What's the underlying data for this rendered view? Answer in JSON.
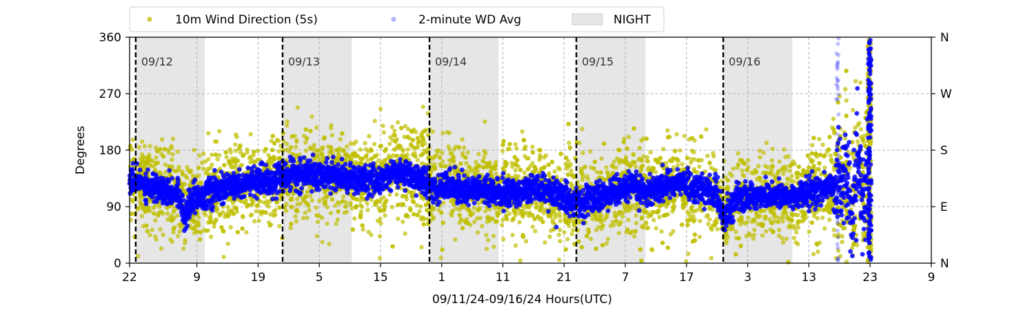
{
  "chart_data": {
    "type": "scatter",
    "xlabel": "09/11/24-09/16/24  Hours(UTC)",
    "ylabel": "Degrees",
    "ylim": [
      0,
      360
    ],
    "xlim_hours": [
      0,
      131
    ],
    "x_ticks": [
      {
        "hour": 0,
        "label": "22"
      },
      {
        "hour": 11,
        "label": "9"
      },
      {
        "hour": 21,
        "label": "19"
      },
      {
        "hour": 31,
        "label": "5"
      },
      {
        "hour": 41,
        "label": "15"
      },
      {
        "hour": 51,
        "label": "1"
      },
      {
        "hour": 61,
        "label": "11"
      },
      {
        "hour": 71,
        "label": "21"
      },
      {
        "hour": 81,
        "label": "7"
      },
      {
        "hour": 91,
        "label": "17"
      },
      {
        "hour": 101,
        "label": "3"
      },
      {
        "hour": 111,
        "label": "13"
      },
      {
        "hour": 121,
        "label": "23"
      },
      {
        "hour": 131,
        "label": "9"
      }
    ],
    "y_ticks": [
      0,
      90,
      180,
      270,
      360
    ],
    "y_right_ticks": [
      {
        "value": 0,
        "label": "N"
      },
      {
        "value": 90,
        "label": "E"
      },
      {
        "value": 180,
        "label": "S"
      },
      {
        "value": 270,
        "label": "W"
      },
      {
        "value": 360,
        "label": "N"
      }
    ],
    "grid": true,
    "legend": {
      "position": "top",
      "items": [
        {
          "label": "10m Wind Direction (5s)",
          "color": "#bfbf00"
        },
        {
          "label": "2-minute WD Avg",
          "color": "#0000ff"
        },
        {
          "label": "NIGHT",
          "color": "#e6e6e6"
        }
      ]
    },
    "day_boundaries": [
      {
        "hour": 1,
        "label": "09/12"
      },
      {
        "hour": 25,
        "label": "09/13"
      },
      {
        "hour": 49,
        "label": "09/14"
      },
      {
        "hour": 73,
        "label": "09/15"
      },
      {
        "hour": 97,
        "label": "09/16"
      }
    ],
    "night_periods": [
      [
        1,
        12.3
      ],
      [
        25,
        36.3
      ],
      [
        49,
        60.3
      ],
      [
        73,
        84.3
      ],
      [
        97,
        108.3
      ]
    ],
    "series": [
      {
        "name": "10m Wind Direction (5s)",
        "color": "#bfbf00",
        "spread": 45,
        "points": [
          [
            0,
            130
          ],
          [
            2,
            128
          ],
          [
            4,
            120
          ],
          [
            6,
            118
          ],
          [
            8,
            110
          ],
          [
            9,
            90
          ],
          [
            10,
            100
          ],
          [
            12,
            108
          ],
          [
            14,
            115
          ],
          [
            16,
            120
          ],
          [
            18,
            125
          ],
          [
            20,
            128
          ],
          [
            22,
            130
          ],
          [
            24,
            135
          ],
          [
            26,
            138
          ],
          [
            28,
            140
          ],
          [
            30,
            142
          ],
          [
            32,
            140
          ],
          [
            34,
            138
          ],
          [
            36,
            135
          ],
          [
            38,
            130
          ],
          [
            40,
            132
          ],
          [
            42,
            138
          ],
          [
            44,
            145
          ],
          [
            46,
            140
          ],
          [
            48,
            130
          ],
          [
            50,
            120
          ],
          [
            52,
            125
          ],
          [
            54,
            120
          ],
          [
            56,
            115
          ],
          [
            58,
            118
          ],
          [
            60,
            110
          ],
          [
            62,
            112
          ],
          [
            64,
            115
          ],
          [
            66,
            120
          ],
          [
            68,
            112
          ],
          [
            70,
            110
          ],
          [
            72,
            100
          ],
          [
            74,
            95
          ],
          [
            76,
            105
          ],
          [
            78,
            110
          ],
          [
            80,
            118
          ],
          [
            82,
            120
          ],
          [
            84,
            115
          ],
          [
            86,
            118
          ],
          [
            88,
            125
          ],
          [
            90,
            130
          ],
          [
            92,
            120
          ],
          [
            94,
            115
          ],
          [
            96,
            110
          ],
          [
            97,
            75
          ],
          [
            99,
            100
          ],
          [
            101,
            105
          ],
          [
            103,
            108
          ],
          [
            105,
            110
          ],
          [
            107,
            105
          ],
          [
            109,
            108
          ],
          [
            111,
            112
          ],
          [
            113,
            118
          ],
          [
            115,
            125
          ],
          [
            117,
            140
          ],
          [
            118,
            70
          ],
          [
            119,
            150
          ],
          [
            120,
            100
          ],
          [
            121,
            150
          ]
        ]
      },
      {
        "name": "2-minute WD Avg",
        "color": "#0000ff",
        "points": [
          [
            0,
            130
          ],
          [
            2,
            128
          ],
          [
            4,
            120
          ],
          [
            6,
            118
          ],
          [
            8,
            110
          ],
          [
            9,
            75
          ],
          [
            10,
            100
          ],
          [
            12,
            108
          ],
          [
            14,
            115
          ],
          [
            16,
            120
          ],
          [
            18,
            125
          ],
          [
            20,
            128
          ],
          [
            22,
            130
          ],
          [
            24,
            135
          ],
          [
            26,
            138
          ],
          [
            28,
            140
          ],
          [
            30,
            142
          ],
          [
            32,
            140
          ],
          [
            34,
            138
          ],
          [
            36,
            135
          ],
          [
            38,
            130
          ],
          [
            40,
            132
          ],
          [
            42,
            138
          ],
          [
            44,
            145
          ],
          [
            46,
            140
          ],
          [
            48,
            130
          ],
          [
            50,
            120
          ],
          [
            52,
            125
          ],
          [
            54,
            120
          ],
          [
            56,
            115
          ],
          [
            58,
            118
          ],
          [
            60,
            110
          ],
          [
            62,
            112
          ],
          [
            64,
            115
          ],
          [
            66,
            120
          ],
          [
            68,
            112
          ],
          [
            70,
            110
          ],
          [
            72,
            100
          ],
          [
            74,
            95
          ],
          [
            76,
            105
          ],
          [
            78,
            110
          ],
          [
            80,
            118
          ],
          [
            82,
            120
          ],
          [
            84,
            115
          ],
          [
            86,
            118
          ],
          [
            88,
            125
          ],
          [
            90,
            130
          ],
          [
            92,
            120
          ],
          [
            94,
            115
          ],
          [
            96,
            110
          ],
          [
            97,
            75
          ],
          [
            99,
            100
          ],
          [
            101,
            105
          ],
          [
            103,
            108
          ],
          [
            105,
            110
          ],
          [
            107,
            105
          ],
          [
            109,
            108
          ],
          [
            111,
            112
          ],
          [
            113,
            118
          ],
          [
            115,
            125
          ],
          [
            117,
            140
          ],
          [
            118,
            70
          ],
          [
            119,
            150
          ],
          [
            120,
            100
          ],
          [
            121,
            150
          ]
        ]
      }
    ],
    "end_spike": {
      "x": 121,
      "ranges": [
        [
          0,
          360
        ]
      ]
    }
  }
}
